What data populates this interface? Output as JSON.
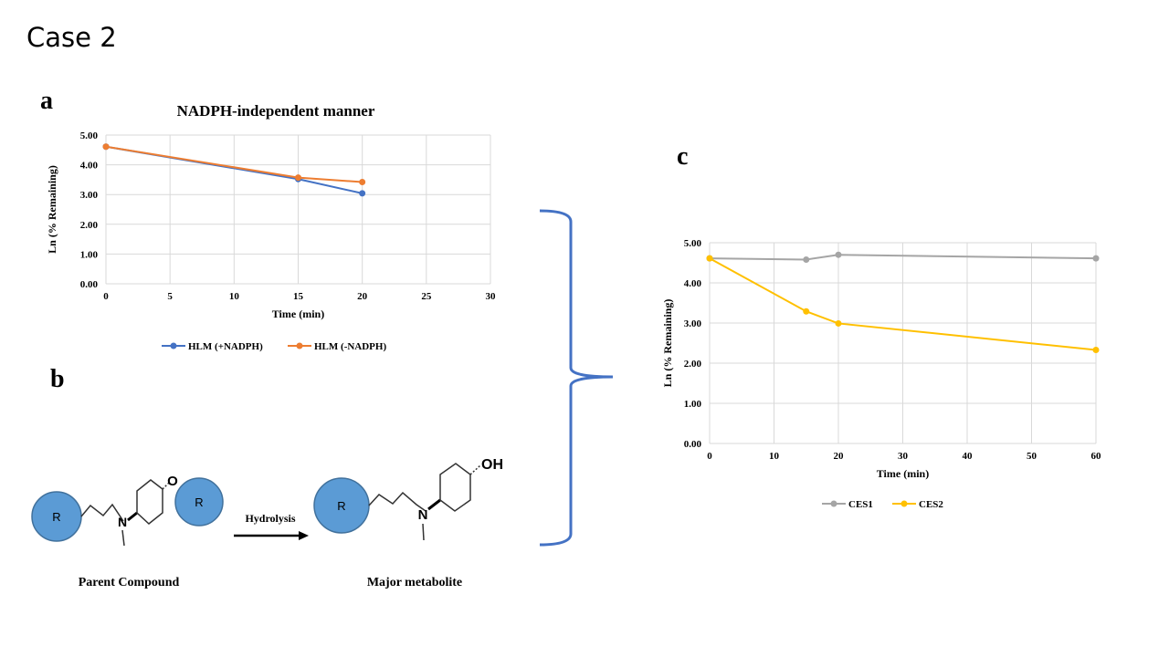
{
  "slide": {
    "title": "Case 2"
  },
  "panels": {
    "a": "a",
    "b": "b",
    "c": "c"
  },
  "chart_data": [
    {
      "panel": "a",
      "type": "line",
      "title": "NADPH-independent manner",
      "xlabel": "Time (min)",
      "ylabel": "Ln (% Remaining)",
      "xlim": [
        0,
        30
      ],
      "ylim": [
        0,
        5
      ],
      "xticks": [
        "0",
        "5",
        "10",
        "15",
        "20",
        "25",
        "30"
      ],
      "yticks": [
        "0.00",
        "1.00",
        "2.00",
        "3.00",
        "4.00",
        "5.00"
      ],
      "grid": true,
      "legend": "bottom",
      "series": [
        {
          "name": "HLM (+NADPH)",
          "color": "#4472c4",
          "x": [
            0,
            15,
            20
          ],
          "y": [
            4.61,
            3.52,
            3.04
          ]
        },
        {
          "name": "HLM (-NADPH)",
          "color": "#ed7d31",
          "x": [
            0,
            15,
            20
          ],
          "y": [
            4.61,
            3.57,
            3.42
          ]
        }
      ]
    },
    {
      "panel": "c",
      "type": "line",
      "title": "",
      "xlabel": "Time (min)",
      "ylabel": "Ln (% Remaining)",
      "xlim": [
        0,
        60
      ],
      "ylim": [
        0,
        5
      ],
      "xticks": [
        "0",
        "10",
        "20",
        "30",
        "40",
        "50",
        "60"
      ],
      "yticks": [
        "0.00",
        "1.00",
        "2.00",
        "3.00",
        "4.00",
        "5.00"
      ],
      "grid": true,
      "legend": "bottom",
      "series": [
        {
          "name": "CES1",
          "color": "#a5a5a5",
          "x": [
            0,
            15,
            20,
            60
          ],
          "y": [
            4.61,
            4.58,
            4.7,
            4.61
          ]
        },
        {
          "name": "CES2",
          "color": "#ffc000",
          "x": [
            0,
            15,
            20,
            60
          ],
          "y": [
            4.61,
            3.29,
            2.99,
            2.33
          ]
        }
      ]
    }
  ],
  "scheme": {
    "r_label": "R",
    "o_label": "O",
    "n_label": "N",
    "oh_label": "OH",
    "arrow_label": "Hydrolysis",
    "parent_label": "Parent Compound",
    "metabolite_label": "Major metabolite",
    "circle_color": "#5b9bd5",
    "bracket_color": "#4472c4"
  }
}
